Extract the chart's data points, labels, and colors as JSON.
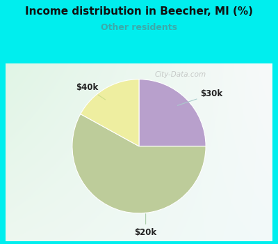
{
  "title": "Income distribution in Beecher, MI (%)",
  "subtitle": "Other residents",
  "subtitle_color": "#3AABAB",
  "title_color": "#111111",
  "slices": [
    {
      "label": "$30k",
      "value": 25,
      "color": "#B8A0CC"
    },
    {
      "label": "$40k",
      "value": 17,
      "color": "#EEEEA0"
    },
    {
      "label": "$20k",
      "value": 58,
      "color": "#BDCC9A"
    }
  ],
  "bg_outer_color": "#00EEEE",
  "watermark": "City-Data.com",
  "chart_bg_tl": [
    0.88,
    0.96,
    0.9
  ],
  "chart_bg_br": [
    0.95,
    0.98,
    0.98
  ]
}
